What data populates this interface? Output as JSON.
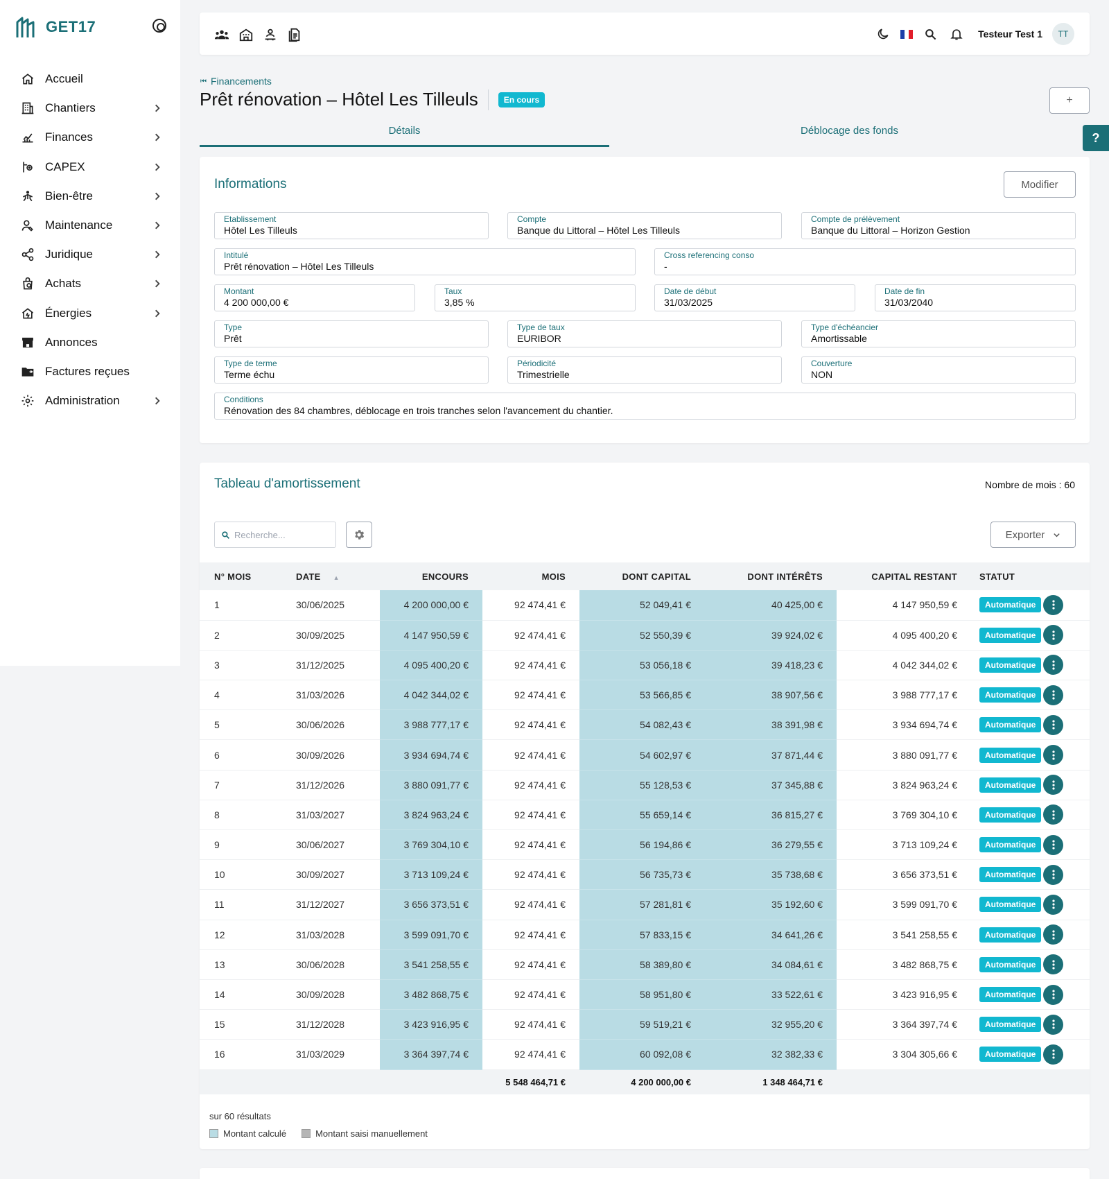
{
  "app": {
    "brand": "GET17"
  },
  "sidebar": {
    "items": [
      {
        "label": "Accueil",
        "icon": "home-icon",
        "chevron": false
      },
      {
        "label": "Chantiers",
        "icon": "building-icon",
        "chevron": true
      },
      {
        "label": "Finances",
        "icon": "finance-chart-icon",
        "chevron": true
      },
      {
        "label": "CAPEX",
        "icon": "capex-icon",
        "chevron": true
      },
      {
        "label": "Bien-être",
        "icon": "wellbeing-icon",
        "chevron": true
      },
      {
        "label": "Maintenance",
        "icon": "maintenance-icon",
        "chevron": true
      },
      {
        "label": "Juridique",
        "icon": "share-icon",
        "chevron": true
      },
      {
        "label": "Achats",
        "icon": "purchase-icon",
        "chevron": true
      },
      {
        "label": "Énergies",
        "icon": "energy-home-icon",
        "chevron": true
      },
      {
        "label": "Annonces",
        "icon": "store-icon",
        "chevron": false
      },
      {
        "label": "Factures reçues",
        "icon": "folder-icon",
        "chevron": false
      },
      {
        "label": "Administration",
        "icon": "settings-icon",
        "chevron": true
      }
    ]
  },
  "topbar": {
    "user_name": "Testeur Test 1",
    "avatar_initials": "TT"
  },
  "header": {
    "breadcrumb": "Financements",
    "title": "Prêt rénovation – Hôtel Les Tilleuls",
    "status_badge": "En cours",
    "plus_label": "+",
    "help_label": "?"
  },
  "tabs": [
    {
      "label": "Détails",
      "active": true
    },
    {
      "label": "Déblocage des fonds",
      "active": false
    }
  ],
  "informations": {
    "title": "Informations",
    "modify_label": "Modifier",
    "fields": {
      "etablissement": {
        "label": "Etablissement",
        "value": "Hôtel Les Tilleuls"
      },
      "compte": {
        "label": "Compte",
        "value": "Banque du Littoral – Hôtel Les Tilleuls"
      },
      "compte_prelevement": {
        "label": "Compte de prélèvement",
        "value": "Banque du Littoral – Horizon Gestion"
      },
      "intitule": {
        "label": "Intitulé",
        "value": "Prêt rénovation – Hôtel Les Tilleuls"
      },
      "cross_ref": {
        "label": "Cross referencing conso",
        "value": "-"
      },
      "montant": {
        "label": "Montant",
        "value": "4 200 000,00 €"
      },
      "taux": {
        "label": "Taux",
        "value": "3,85 %"
      },
      "date_debut": {
        "label": "Date de début",
        "value": "31/03/2025"
      },
      "date_fin": {
        "label": "Date de fin",
        "value": "31/03/2040"
      },
      "type": {
        "label": "Type",
        "value": "Prêt"
      },
      "type_taux": {
        "label": "Type de taux",
        "value": "EURIBOR"
      },
      "type_echeancier": {
        "label": "Type d'échéancier",
        "value": "Amortissable"
      },
      "type_terme": {
        "label": "Type de terme",
        "value": "Terme échu"
      },
      "periodicite": {
        "label": "Périodicité",
        "value": "Trimestrielle"
      },
      "couverture": {
        "label": "Couverture",
        "value": "NON"
      },
      "conditions": {
        "label": "Conditions",
        "value": "Rénovation des 84 chambres, déblocage en trois tranches selon l'avancement du chantier."
      }
    }
  },
  "amortissement": {
    "title": "Tableau d'amortissement",
    "month_count": "Nombre de mois : 60",
    "search_placeholder": "Recherche...",
    "export_label": "Exporter",
    "columns": [
      "N° MOIS",
      "DATE",
      "ENCOURS",
      "MOIS",
      "DONT CAPITAL",
      "DONT INTÉRÊTS",
      "CAPITAL RESTANT",
      "STATUT"
    ],
    "rows": [
      [
        "1",
        "30/06/2025",
        "4 200 000,00 €",
        "92 474,41 €",
        "52 049,41 €",
        "40 425,00 €",
        "4 147 950,59 €",
        "Automatique"
      ],
      [
        "2",
        "30/09/2025",
        "4 147 950,59 €",
        "92 474,41 €",
        "52 550,39 €",
        "39 924,02 €",
        "4 095 400,20 €",
        "Automatique"
      ],
      [
        "3",
        "31/12/2025",
        "4 095 400,20 €",
        "92 474,41 €",
        "53 056,18 €",
        "39 418,23 €",
        "4 042 344,02 €",
        "Automatique"
      ],
      [
        "4",
        "31/03/2026",
        "4 042 344,02 €",
        "92 474,41 €",
        "53 566,85 €",
        "38 907,56 €",
        "3 988 777,17 €",
        "Automatique"
      ],
      [
        "5",
        "30/06/2026",
        "3 988 777,17 €",
        "92 474,41 €",
        "54 082,43 €",
        "38 391,98 €",
        "3 934 694,74 €",
        "Automatique"
      ],
      [
        "6",
        "30/09/2026",
        "3 934 694,74 €",
        "92 474,41 €",
        "54 602,97 €",
        "37 871,44 €",
        "3 880 091,77 €",
        "Automatique"
      ],
      [
        "7",
        "31/12/2026",
        "3 880 091,77 €",
        "92 474,41 €",
        "55 128,53 €",
        "37 345,88 €",
        "3 824 963,24 €",
        "Automatique"
      ],
      [
        "8",
        "31/03/2027",
        "3 824 963,24 €",
        "92 474,41 €",
        "55 659,14 €",
        "36 815,27 €",
        "3 769 304,10 €",
        "Automatique"
      ],
      [
        "9",
        "30/06/2027",
        "3 769 304,10 €",
        "92 474,41 €",
        "56 194,86 €",
        "36 279,55 €",
        "3 713 109,24 €",
        "Automatique"
      ],
      [
        "10",
        "30/09/2027",
        "3 713 109,24 €",
        "92 474,41 €",
        "56 735,73 €",
        "35 738,68 €",
        "3 656 373,51 €",
        "Automatique"
      ],
      [
        "11",
        "31/12/2027",
        "3 656 373,51 €",
        "92 474,41 €",
        "57 281,81 €",
        "35 192,60 €",
        "3 599 091,70 €",
        "Automatique"
      ],
      [
        "12",
        "31/03/2028",
        "3 599 091,70 €",
        "92 474,41 €",
        "57 833,15 €",
        "34 641,26 €",
        "3 541 258,55 €",
        "Automatique"
      ],
      [
        "13",
        "30/06/2028",
        "3 541 258,55 €",
        "92 474,41 €",
        "58 389,80 €",
        "34 084,61 €",
        "3 482 868,75 €",
        "Automatique"
      ],
      [
        "14",
        "30/09/2028",
        "3 482 868,75 €",
        "92 474,41 €",
        "58 951,80 €",
        "33 522,61 €",
        "3 423 916,95 €",
        "Automatique"
      ],
      [
        "15",
        "31/12/2028",
        "3 423 916,95 €",
        "92 474,41 €",
        "59 519,21 €",
        "32 955,20 €",
        "3 364 397,74 €",
        "Automatique"
      ],
      [
        "16",
        "31/03/2029",
        "3 364 397,74 €",
        "92 474,41 €",
        "60 092,08 €",
        "32 382,33 €",
        "3 304 305,66 €",
        "Automatique"
      ]
    ],
    "totals": {
      "mois": "5 548 464,71 €",
      "capital": "4 200 000,00 €",
      "interets": "1 348 464,71 €"
    },
    "results_text": "sur 60 résultats",
    "legend": [
      {
        "label": "Montant calculé",
        "color": "#b9dce4"
      },
      {
        "label": "Montant saisi manuellement",
        "color": "#b5b5b5"
      }
    ]
  },
  "colors": {
    "primary": "#1b6f77",
    "badge": "#11b8d0",
    "calculated": "#b9dce4"
  }
}
